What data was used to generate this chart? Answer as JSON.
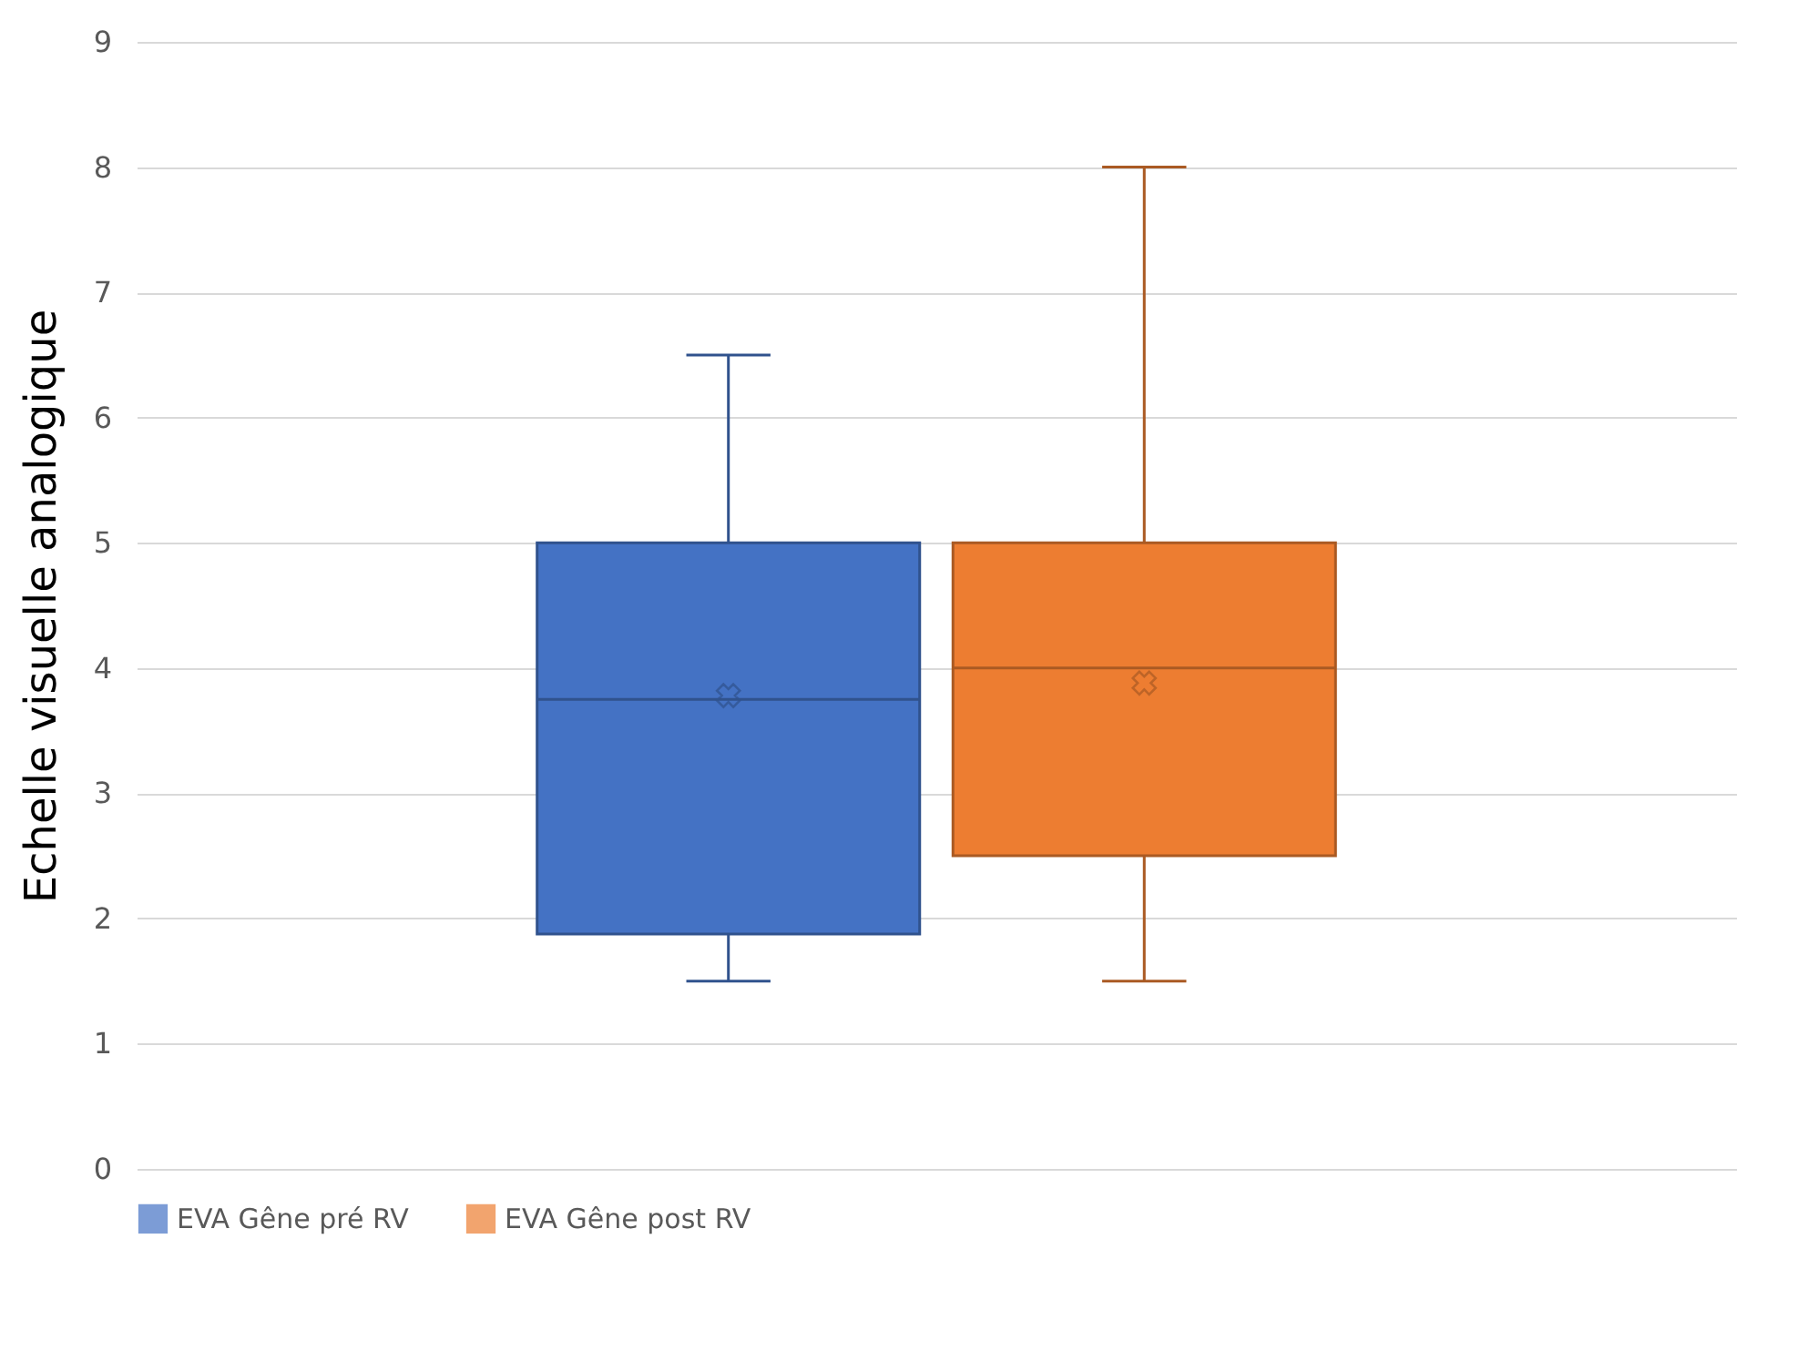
{
  "chart_data": {
    "type": "box",
    "ylabel": "Echelle visuelle analogique",
    "categories": [
      null
    ],
    "series": [
      {
        "name": "EVA Gêne pré RV",
        "color": "#4472c4",
        "boxes": [
          {
            "low": 1.5,
            "q1": 1.875,
            "median": 3.75,
            "q3": 5,
            "high": 6.5,
            "mean": 3.78
          }
        ]
      },
      {
        "name": "EVA Gêne post RV",
        "color": "#ed7d31",
        "boxes": [
          {
            "low": 1.5,
            "q1": 2.5,
            "median": 4,
            "q3": 5,
            "high": 8,
            "mean": 3.88
          }
        ]
      }
    ],
    "ylim": [
      0,
      9
    ],
    "yticks": [
      0,
      1,
      2,
      3,
      4,
      5,
      6,
      7,
      8,
      9
    ],
    "grid": "y",
    "legend": "bottom",
    "tick_labels": "y"
  }
}
